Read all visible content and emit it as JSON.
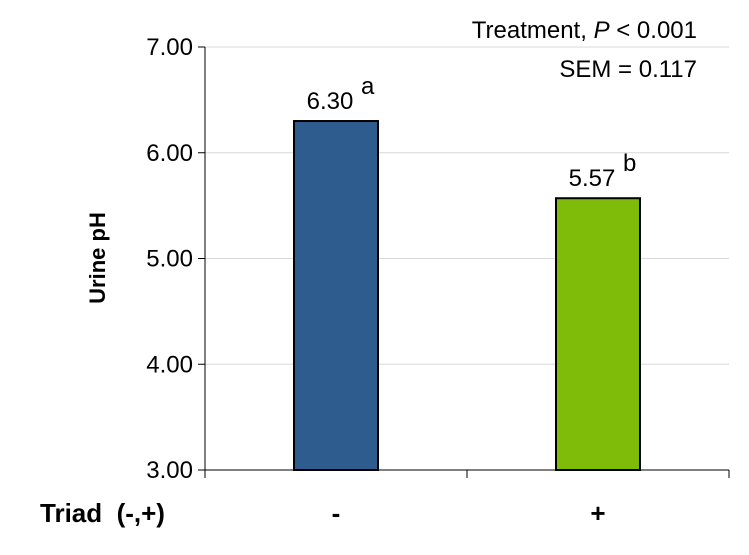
{
  "chart_data": {
    "type": "bar",
    "categories": [
      "-",
      "+"
    ],
    "values": [
      6.3,
      5.57
    ],
    "value_labels": [
      "6.30",
      "5.57"
    ],
    "superscripts": [
      "a",
      "b"
    ],
    "colors": [
      "#2e5c8f",
      "#7ebc09"
    ],
    "title": "",
    "xlabel": "Triad  (-,+)",
    "ylabel": "Urine pH",
    "ylim": [
      3.0,
      7.0
    ],
    "yticks": [
      3.0,
      4.0,
      5.0,
      6.0,
      7.0
    ],
    "ytick_labels": [
      "3.00",
      "4.00",
      "5.00",
      "6.00",
      "7.00"
    ],
    "grid": true,
    "annotations": {
      "line1_prefix": "Treatment, ",
      "line1_italic": "P",
      "line1_suffix": " < 0.001",
      "line2": "SEM = 0.117"
    }
  }
}
